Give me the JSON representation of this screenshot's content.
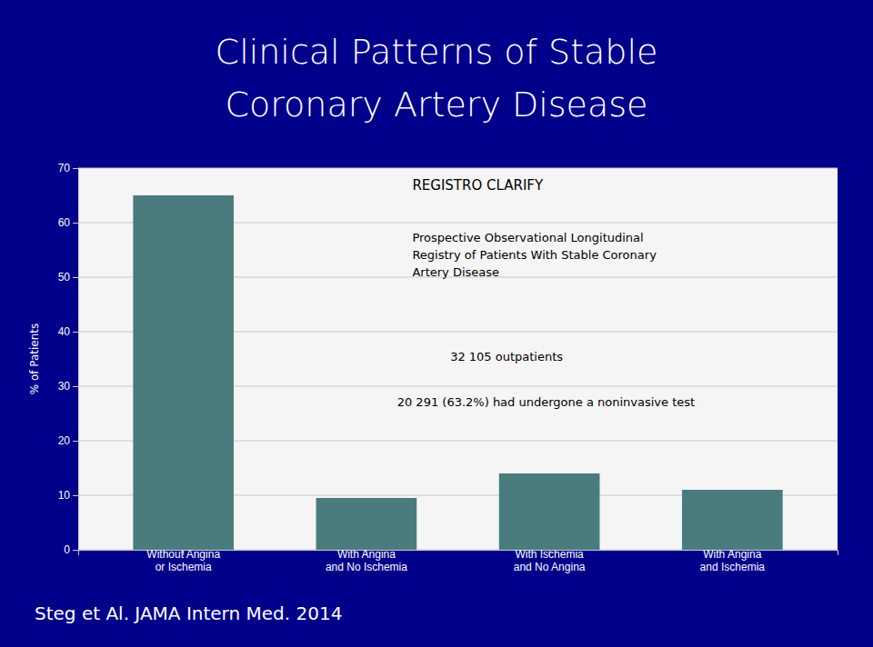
{
  "chart_data": {
    "type": "bar",
    "title": "Clinical Patterns of Stable\nCoronary Artery Disease",
    "categories": [
      "Without Angina\nor Ischemia",
      "With Angina\nand No Ischemia",
      "With Ischemia\nand No Angina",
      "With Angina\nand Ischemia"
    ],
    "values": [
      65.0,
      9.5,
      14.0,
      11.0
    ],
    "color": "#4a7c7e",
    "y_label": "% of Patients",
    "ylim": [
      0,
      70
    ],
    "yticks": [
      0,
      10,
      20,
      30,
      40,
      50,
      60,
      70
    ],
    "grid": true,
    "annotations": [
      "REGISTRO CLARIFY",
      "Prospective Observational Longitudinal\nRegistry of Patients With Stable Coronary\nArtery Disease",
      "32 105 outpatients",
      "20 291 (63.2%) had undergone a noninvasive test",
      "Steg et Al. JAMA Intern Med. 2014"
    ]
  }
}
